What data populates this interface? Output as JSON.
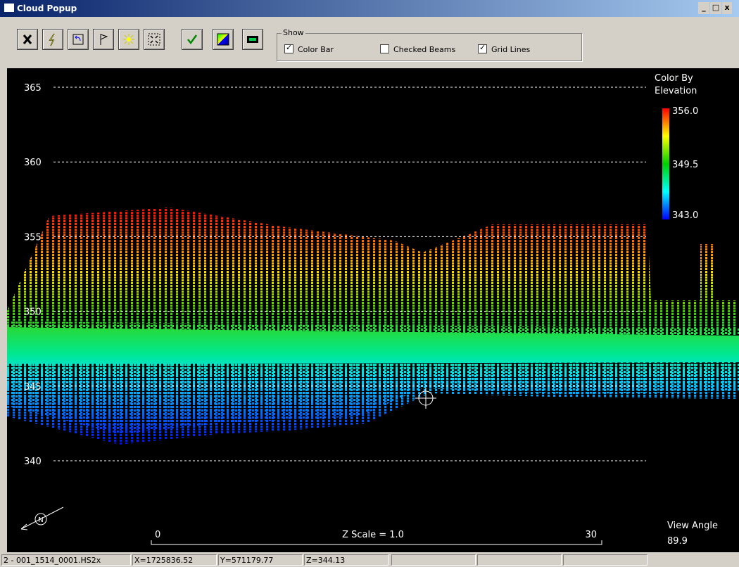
{
  "window": {
    "title": "Cloud Popup"
  },
  "show": {
    "label": "Show",
    "options": [
      {
        "label": "Color Bar",
        "checked": true
      },
      {
        "label": "Checked Beams",
        "checked": false
      },
      {
        "label": "Grid Lines",
        "checked": true
      }
    ]
  },
  "plot": {
    "yticks": [
      365,
      360,
      355,
      350,
      345,
      340
    ],
    "colorbar": {
      "title": "Color By Elevation",
      "labels": [
        "356.0",
        "349.5",
        "343.0"
      ]
    },
    "scale": {
      "start": "0",
      "end": "30",
      "label": "Z Scale = 1.0"
    },
    "view_angle": {
      "label": "View Angle",
      "value": "89.9"
    },
    "north": "N"
  },
  "status": [
    "2 - 001_1514_0001.HS2x",
    "X=1725836.52",
    "Y=571179.77",
    "Z=344.13"
  ]
}
